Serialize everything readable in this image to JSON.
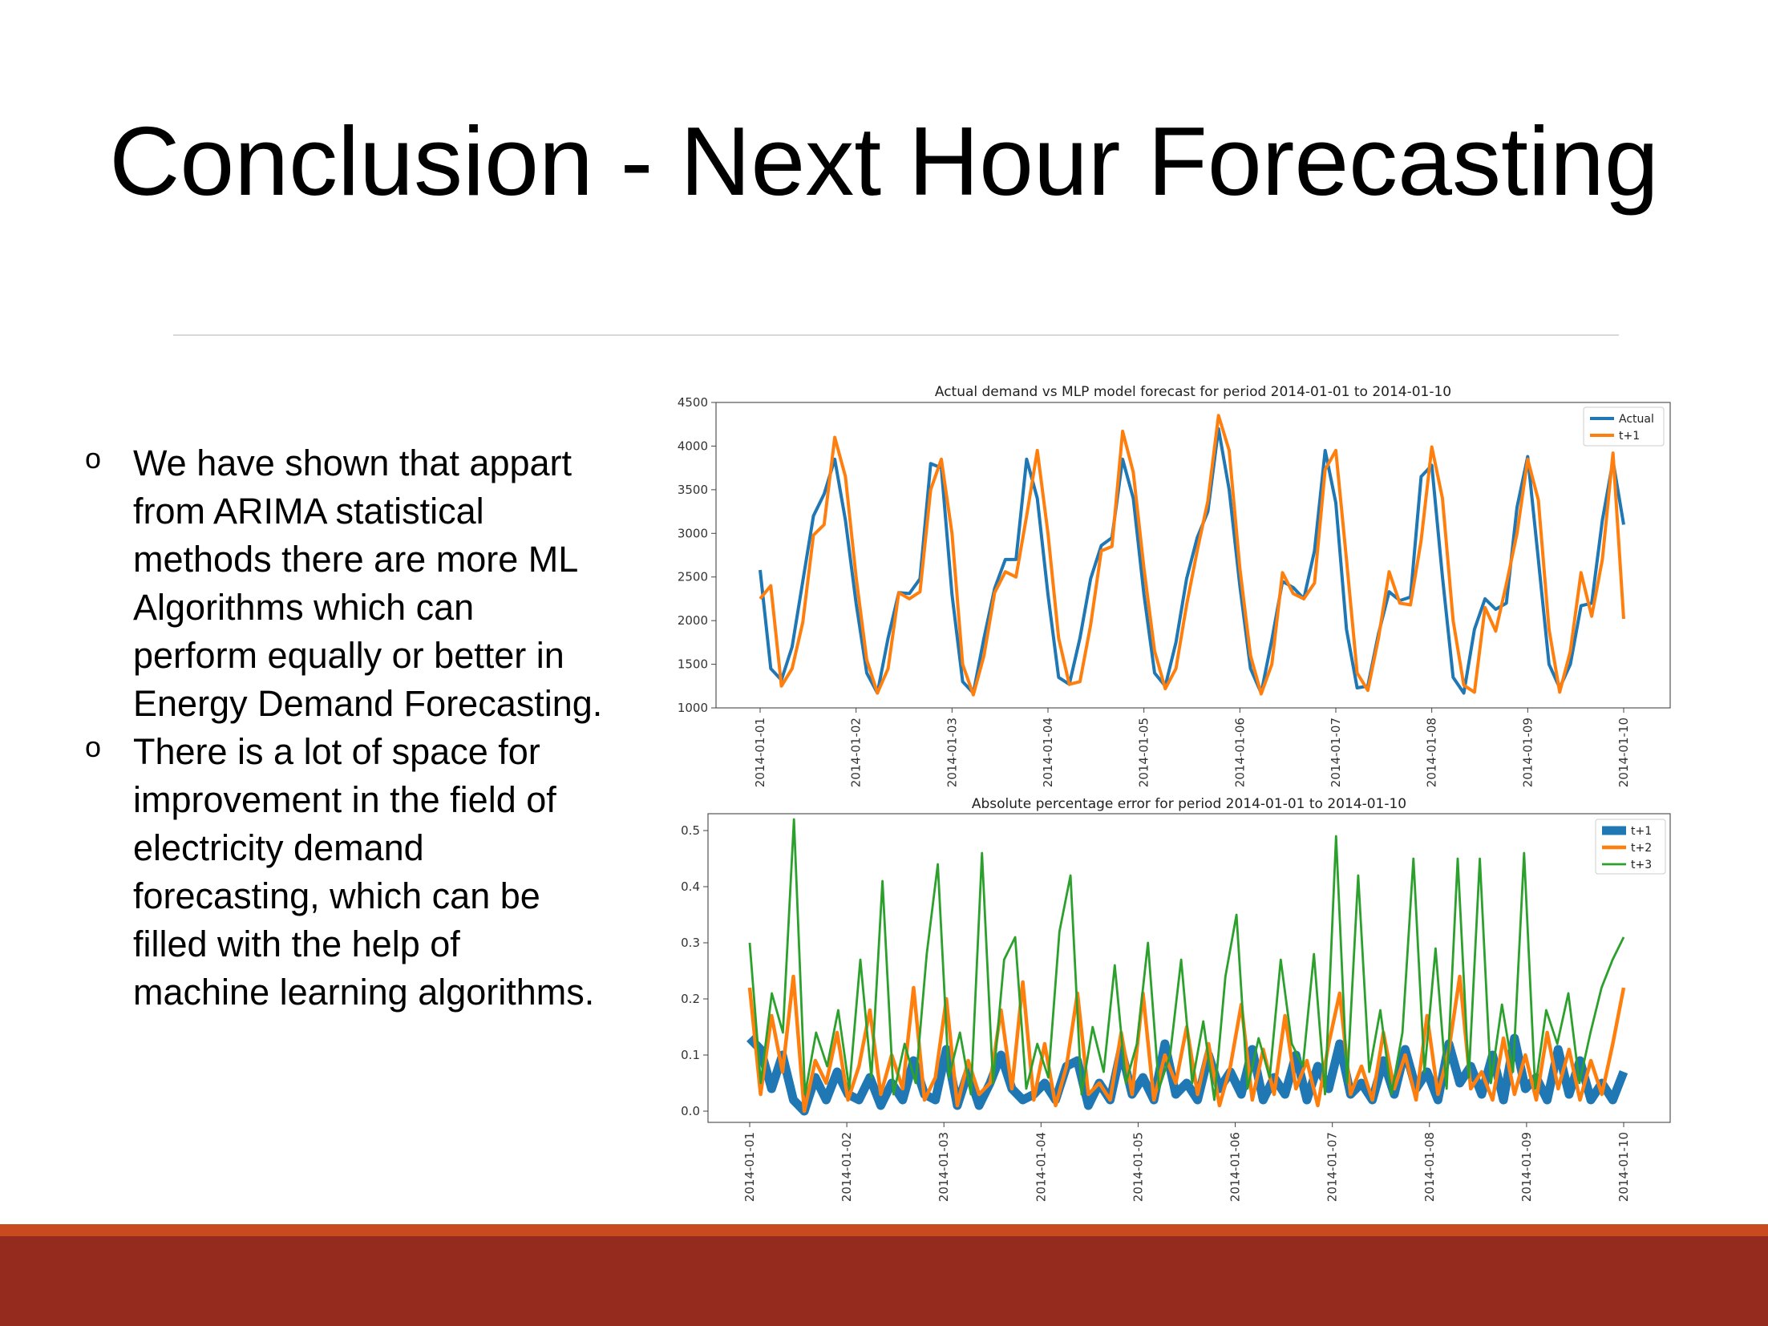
{
  "slide": {
    "title": "Conclusion - Next Hour Forecasting",
    "bullets": [
      {
        "marker": "o",
        "lines": [
          "We have shown that appart",
          "from ARIMA statistical",
          "methods there are more ML",
          "Algorithms which can",
          "perform equally or better in",
          "Energy Demand Forecasting."
        ]
      },
      {
        "marker": "o",
        "lines": [
          "There is a lot of space for",
          "improvement in the field of",
          "electricity demand",
          "forecasting, which can be",
          "filled with the help of",
          "machine learning algorithms."
        ]
      }
    ],
    "colors": {
      "footer_stripe": "#c94a1e",
      "footer_band": "#952a1e",
      "rule": "#d8d8d8"
    }
  },
  "chart_data": [
    {
      "type": "line",
      "title": "Actual demand vs MLP model forecast for period 2014-01-01 to 2014-01-10",
      "xlabel": "",
      "ylabel": "",
      "x_range": [
        "2014-01-01",
        "2014-01-10"
      ],
      "ylim": [
        1000,
        4500
      ],
      "yticks": [
        1000,
        1500,
        2000,
        2500,
        3000,
        3500,
        4000,
        4500
      ],
      "xticks": [
        "2014-01-01",
        "2014-01-02",
        "2014-01-03",
        "2014-01-04",
        "2014-01-05",
        "2014-01-06",
        "2014-01-07",
        "2014-01-08",
        "2014-01-09",
        "2014-01-10"
      ],
      "grid": false,
      "legend": "top-right",
      "sampling": "every 3 hours",
      "series": [
        {
          "name": "Actual",
          "color": "#1f77b4",
          "values": [
            2580,
            1450,
            1320,
            1700,
            2450,
            3200,
            3450,
            3850,
            3150,
            2200,
            1400,
            1170,
            1800,
            2320,
            2310,
            2480,
            3800,
            3750,
            2300,
            1300,
            1170,
            1800,
            2370,
            2700,
            2700,
            3850,
            3400,
            2300,
            1350,
            1270,
            1800,
            2480,
            2860,
            2950,
            3850,
            3400,
            2300,
            1400,
            1250,
            1750,
            2480,
            2950,
            3250,
            4200,
            3500,
            2400,
            1450,
            1170,
            1780,
            2450,
            2380,
            2250,
            2800,
            3950,
            3350,
            1900,
            1230,
            1250,
            1850,
            2330,
            2230,
            2270,
            3650,
            3780,
            2500,
            1350,
            1170,
            1900,
            2250,
            2130,
            2200,
            3300,
            3880,
            2700,
            1500,
            1230,
            1500,
            2170,
            2200,
            3150,
            3830,
            3100
          ]
        },
        {
          "name": "t+1",
          "color": "#ff7f0e",
          "values": [
            2250,
            2400,
            1250,
            1450,
            1980,
            2980,
            3100,
            4100,
            3650,
            2500,
            1550,
            1170,
            1450,
            2320,
            2250,
            2330,
            3500,
            3850,
            3000,
            1500,
            1150,
            1600,
            2320,
            2560,
            2500,
            3200,
            3950,
            3000,
            1800,
            1270,
            1300,
            1950,
            2800,
            2850,
            4170,
            3700,
            2600,
            1650,
            1220,
            1450,
            2180,
            2800,
            3370,
            4350,
            3950,
            2600,
            1600,
            1160,
            1500,
            2550,
            2310,
            2250,
            2430,
            3730,
            3950,
            2700,
            1400,
            1200,
            1800,
            2560,
            2200,
            2180,
            2920,
            3990,
            3400,
            2000,
            1260,
            1180,
            2150,
            1880,
            2420,
            3000,
            3850,
            3380,
            1900,
            1180,
            1650,
            2550,
            2050,
            2700,
            3920,
            2020
          ]
        }
      ]
    },
    {
      "type": "line",
      "title": "Absolute percentage error for period 2014-01-01 to 2014-01-10",
      "xlabel": "",
      "ylabel": "",
      "x_range": [
        "2014-01-01",
        "2014-01-10"
      ],
      "ylim": [
        -0.02,
        0.53
      ],
      "yticks": [
        0.0,
        0.1,
        0.2,
        0.3,
        0.4,
        0.5
      ],
      "ytick_labels": [
        "0.0",
        "0.1",
        "0.2",
        "0.3",
        "0.4",
        "0.5"
      ],
      "xticks": [
        "2014-01-01",
        "2014-01-02",
        "2014-01-03",
        "2014-01-04",
        "2014-01-05",
        "2014-01-06",
        "2014-01-07",
        "2014-01-08",
        "2014-01-09",
        "2014-01-10"
      ],
      "grid": false,
      "legend": "top-right",
      "sampling": "every 3 hours",
      "series": [
        {
          "name": "t+1",
          "color": "#1f77b4",
          "values": [
            0.13,
            0.11,
            0.04,
            0.1,
            0.02,
            0.0,
            0.06,
            0.02,
            0.07,
            0.03,
            0.02,
            0.06,
            0.01,
            0.05,
            0.02,
            0.09,
            0.03,
            0.02,
            0.11,
            0.01,
            0.07,
            0.01,
            0.05,
            0.1,
            0.04,
            0.02,
            0.03,
            0.05,
            0.02,
            0.08,
            0.09,
            0.01,
            0.05,
            0.02,
            0.11,
            0.03,
            0.06,
            0.02,
            0.12,
            0.03,
            0.05,
            0.02,
            0.1,
            0.04,
            0.07,
            0.03,
            0.11,
            0.02,
            0.06,
            0.03,
            0.1,
            0.02,
            0.08,
            0.04,
            0.12,
            0.03,
            0.05,
            0.02,
            0.09,
            0.03,
            0.11,
            0.04,
            0.07,
            0.02,
            0.12,
            0.05,
            0.08,
            0.03,
            0.1,
            0.02,
            0.13,
            0.04,
            0.06,
            0.02,
            0.11,
            0.03,
            0.09,
            0.02,
            0.05,
            0.02,
            0.07
          ]
        },
        {
          "name": "t+2",
          "color": "#ff7f0e",
          "values": [
            0.22,
            0.03,
            0.17,
            0.07,
            0.24,
            0.0,
            0.09,
            0.05,
            0.14,
            0.02,
            0.08,
            0.18,
            0.03,
            0.1,
            0.04,
            0.22,
            0.02,
            0.06,
            0.2,
            0.01,
            0.09,
            0.03,
            0.05,
            0.18,
            0.04,
            0.23,
            0.02,
            0.12,
            0.01,
            0.08,
            0.21,
            0.03,
            0.05,
            0.02,
            0.14,
            0.03,
            0.21,
            0.02,
            0.1,
            0.05,
            0.15,
            0.03,
            0.12,
            0.01,
            0.08,
            0.19,
            0.02,
            0.11,
            0.03,
            0.17,
            0.04,
            0.09,
            0.01,
            0.12,
            0.21,
            0.03,
            0.08,
            0.02,
            0.14,
            0.04,
            0.1,
            0.02,
            0.17,
            0.03,
            0.11,
            0.24,
            0.04,
            0.07,
            0.02,
            0.13,
            0.03,
            0.1,
            0.02,
            0.14,
            0.04,
            0.11,
            0.02,
            0.09,
            0.03,
            0.12,
            0.22
          ]
        },
        {
          "name": "t+3",
          "color": "#2ca02c",
          "values": [
            0.3,
            0.05,
            0.21,
            0.14,
            0.52,
            0.03,
            0.14,
            0.08,
            0.18,
            0.04,
            0.27,
            0.06,
            0.41,
            0.03,
            0.12,
            0.05,
            0.28,
            0.44,
            0.06,
            0.14,
            0.03,
            0.46,
            0.05,
            0.27,
            0.31,
            0.04,
            0.12,
            0.06,
            0.32,
            0.42,
            0.03,
            0.15,
            0.07,
            0.26,
            0.05,
            0.12,
            0.3,
            0.04,
            0.1,
            0.27,
            0.05,
            0.16,
            0.02,
            0.24,
            0.35,
            0.04,
            0.13,
            0.06,
            0.27,
            0.12,
            0.08,
            0.28,
            0.03,
            0.49,
            0.05,
            0.42,
            0.07,
            0.18,
            0.03,
            0.14,
            0.45,
            0.07,
            0.29,
            0.04,
            0.45,
            0.06,
            0.45,
            0.05,
            0.19,
            0.07,
            0.46,
            0.04,
            0.18,
            0.12,
            0.21,
            0.05,
            0.14,
            0.22,
            0.27,
            0.31
          ]
        }
      ]
    }
  ]
}
